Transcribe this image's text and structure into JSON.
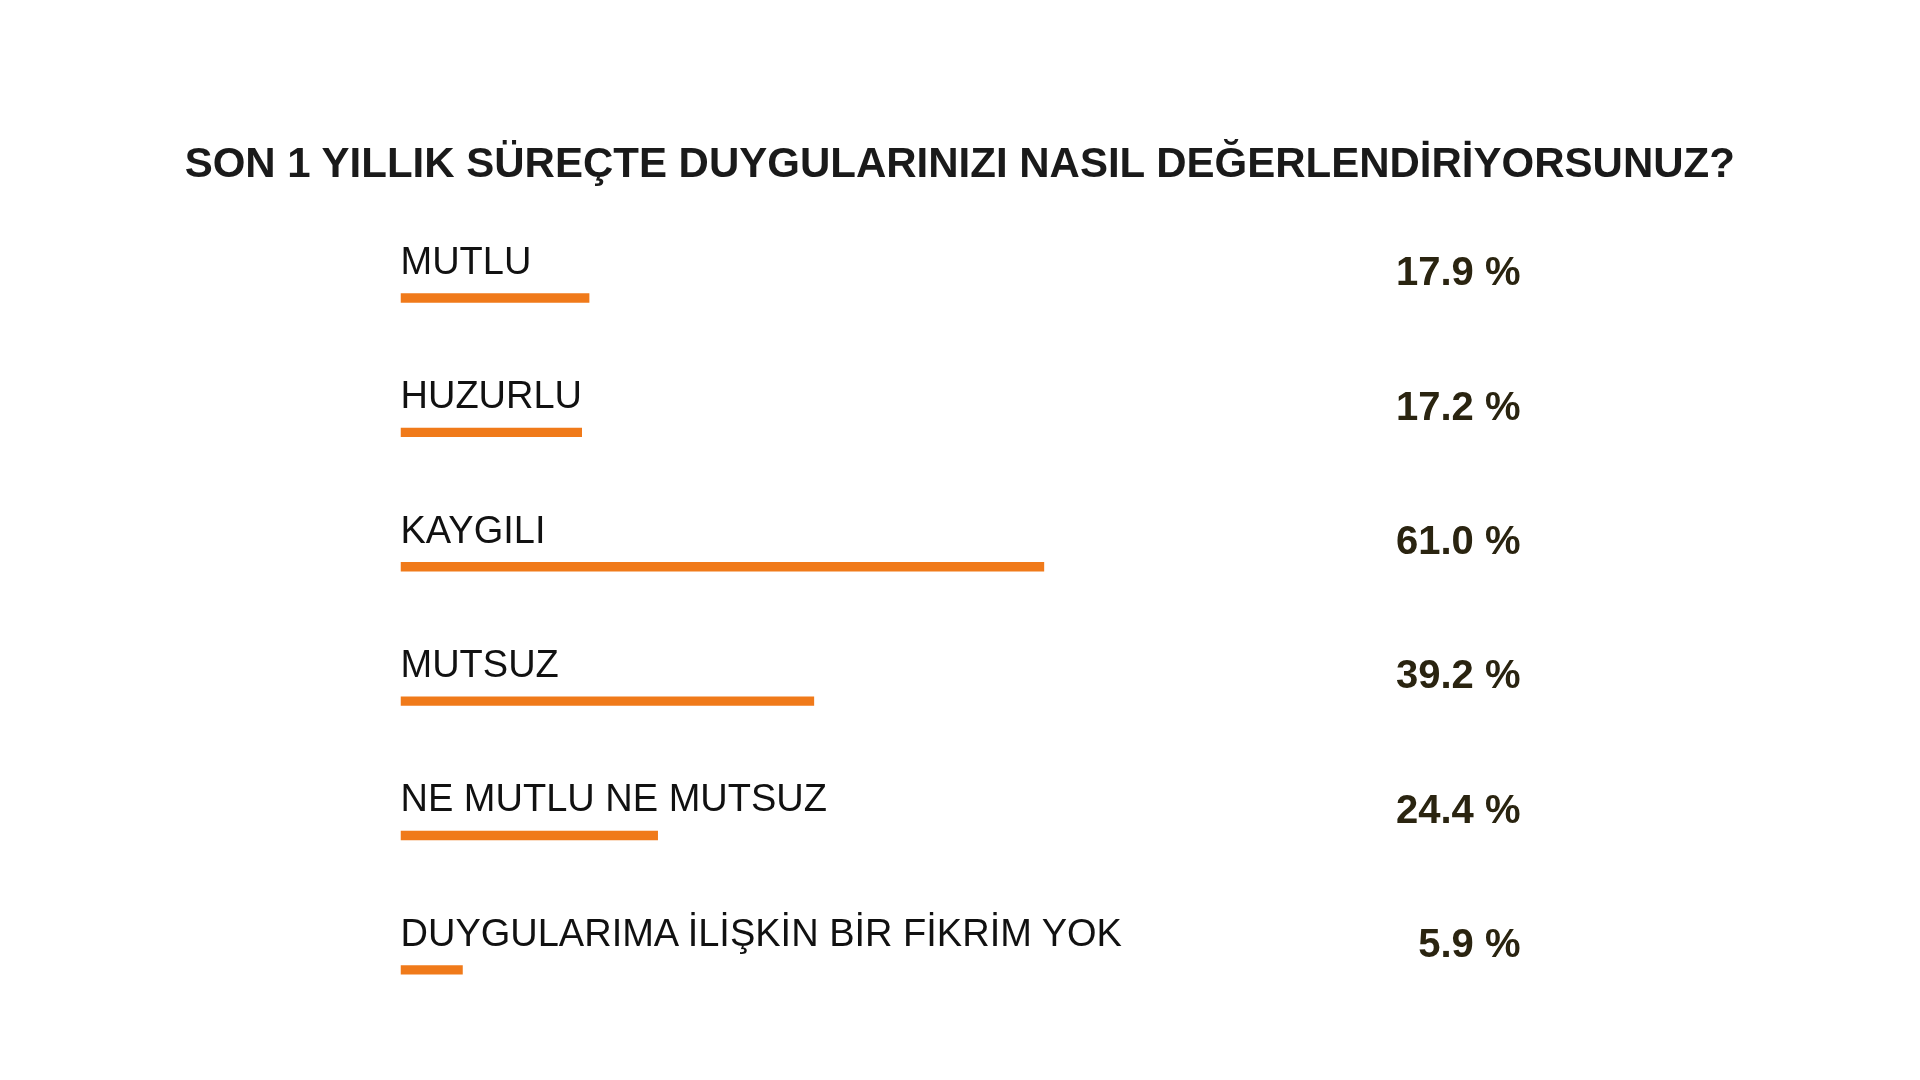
{
  "chart_data": {
    "type": "bar",
    "orientation": "horizontal",
    "title": "SON 1 YILLIK SÜREÇTE DUYGULARINIZI NASIL DEĞERLENDİRİYORSUNUZ?",
    "categories": [
      "MUTLU",
      "HUZURLU",
      "KAYGILI",
      "MUTSUZ",
      "NE MUTLU NE MUTSUZ",
      "DUYGULARIMA İLİŞKİN BİR FİKRİM YOK"
    ],
    "values": [
      17.9,
      17.2,
      61.0,
      39.2,
      24.4,
      5.9
    ],
    "value_labels": [
      "17.9 %",
      "17.2 %",
      "61.0 %",
      "39.2 %",
      "24.4 %",
      "5.9 %"
    ],
    "color": "#f07a1a",
    "grid": false
  }
}
